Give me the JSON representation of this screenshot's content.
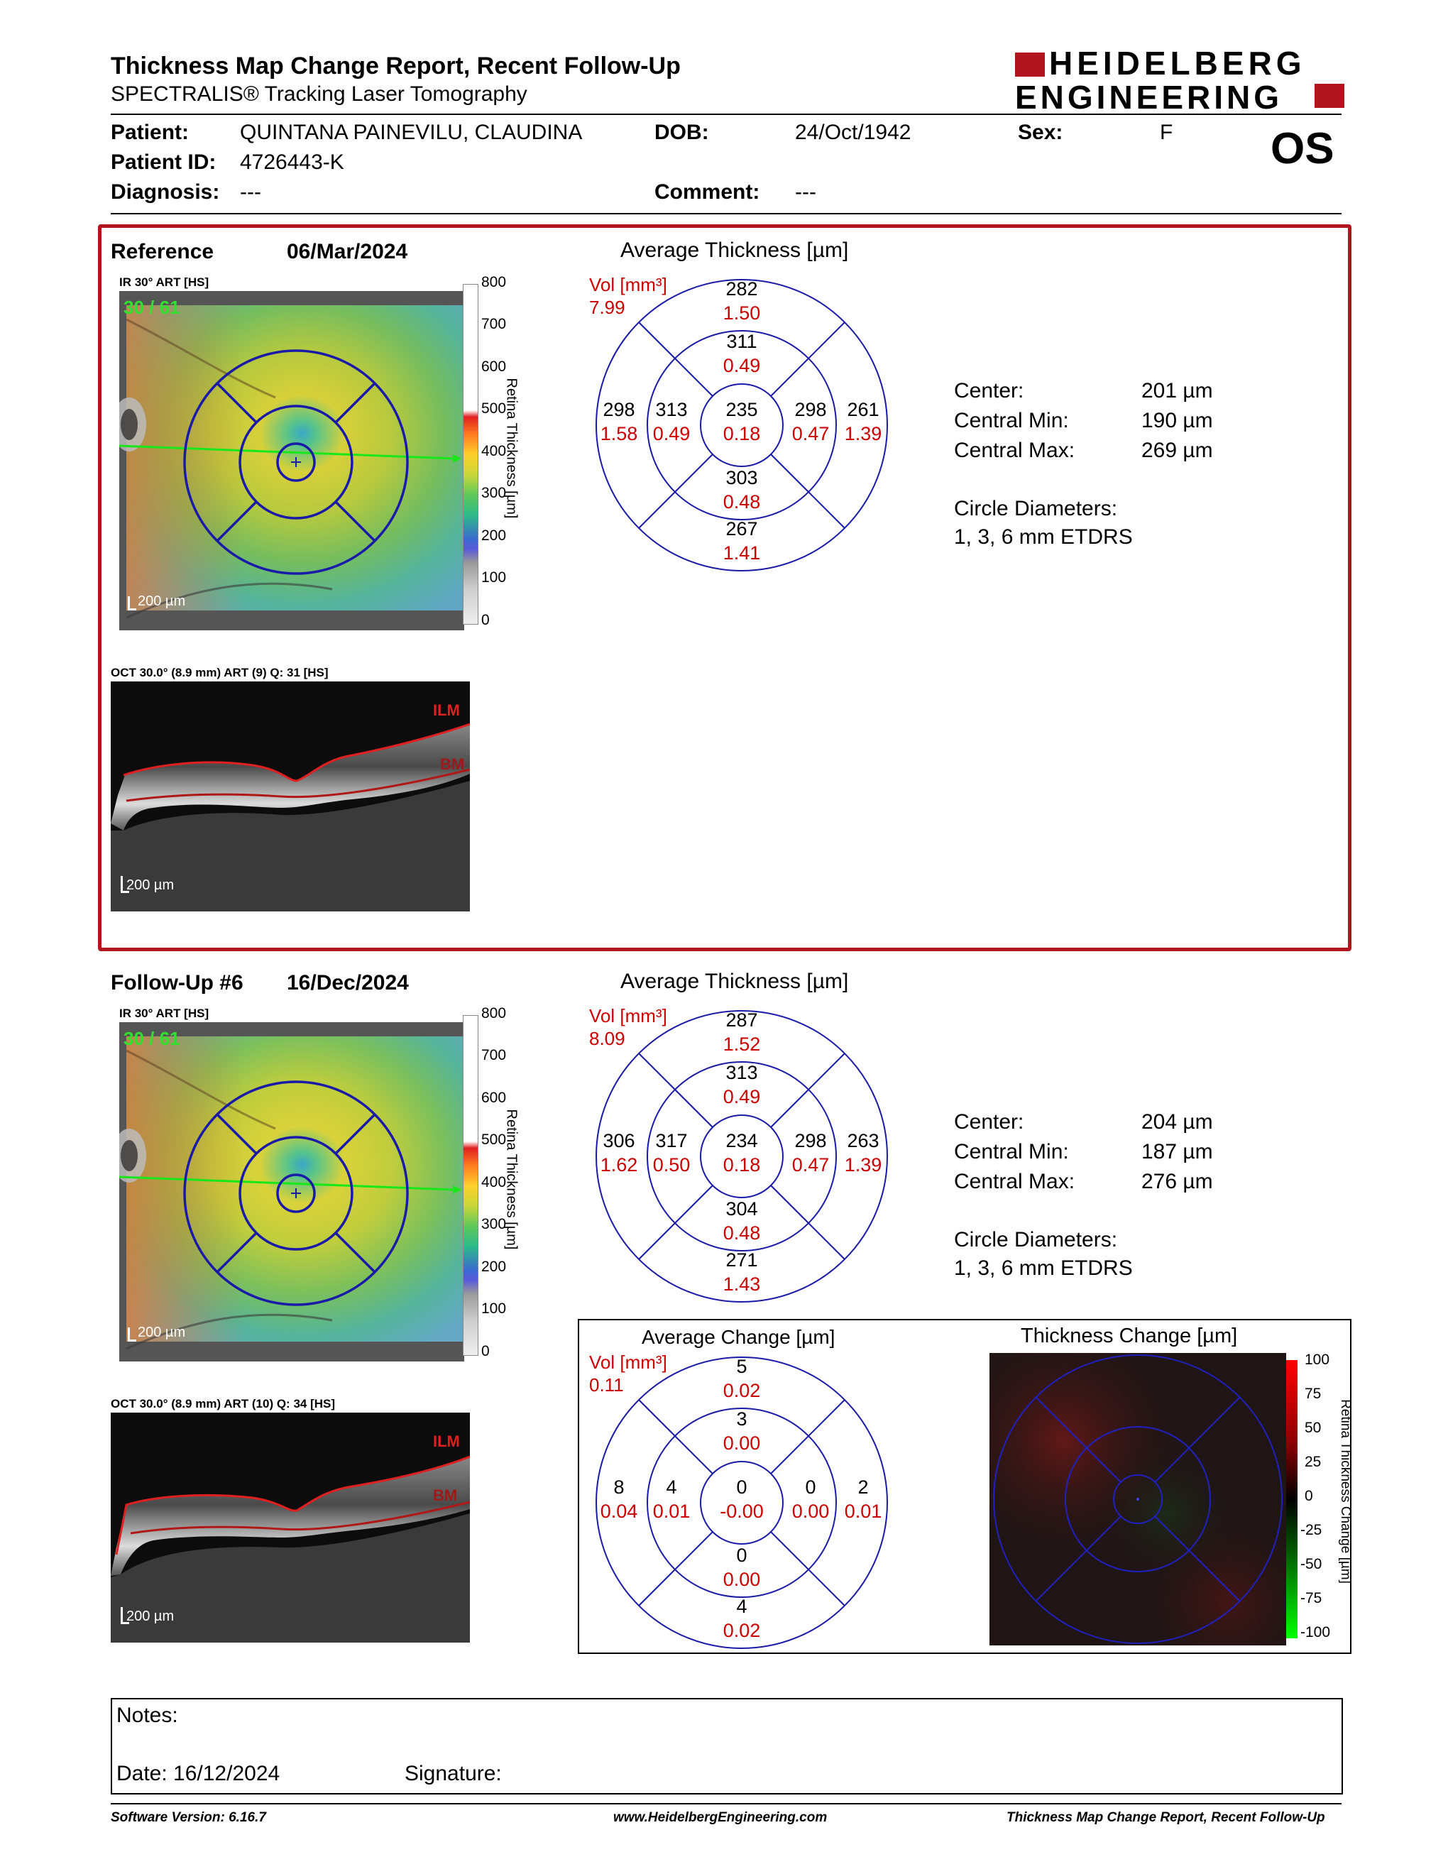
{
  "header": {
    "title": "Thickness Map Change Report, Recent Follow-Up",
    "subtitle": "SPECTRALIS® Tracking Laser Tomography",
    "logo_line1": "HEIDELBERG",
    "logo_line2": "ENGINEERING",
    "eye": "OS"
  },
  "patient": {
    "patient_label": "Patient:",
    "patient_value": "QUINTANA PAINEVILU, CLAUDINA",
    "id_label": "Patient ID:",
    "id_value": "4726443-K",
    "diagnosis_label": "Diagnosis:",
    "diagnosis_value": "---",
    "dob_label": "DOB:",
    "dob_value": "24/Oct/1942",
    "comment_label": "Comment:",
    "comment_value": "---",
    "sex_label": "Sex:",
    "sex_value": "F"
  },
  "reference": {
    "label": "Reference",
    "date": "06/Mar/2024",
    "ir_label": "IR 30° ART [HS]",
    "ir_overlay": "30 / 61",
    "ir_scale": "200 µm",
    "oct_label": "OCT 30.0° (8.9 mm) ART (9) Q: 31 [HS]",
    "oct_scale": "200 µm",
    "ilm": "ILM",
    "bm": "BM",
    "avg_title": "Average Thickness [µm]",
    "vol_label": "Vol [mm³]",
    "vol_value": "7.99",
    "sectors": {
      "outer_top": {
        "t": "282",
        "v": "1.50"
      },
      "inner_top": {
        "t": "311",
        "v": "0.49"
      },
      "outer_left": {
        "t": "298",
        "v": "1.58"
      },
      "inner_left": {
        "t": "313",
        "v": "0.49"
      },
      "center": {
        "t": "235",
        "v": "0.18"
      },
      "inner_right": {
        "t": "298",
        "v": "0.47"
      },
      "outer_right": {
        "t": "261",
        "v": "1.39"
      },
      "inner_bottom": {
        "t": "303",
        "v": "0.48"
      },
      "outer_bottom": {
        "t": "267",
        "v": "1.41"
      }
    },
    "stats": {
      "center_label": "Center:",
      "center_value": "201 µm",
      "min_label": "Central Min:",
      "min_value": "190 µm",
      "max_label": "Central Max:",
      "max_value": "269 µm",
      "circ_label": "Circle Diameters:",
      "circ_value": "1, 3, 6 mm ETDRS"
    }
  },
  "followup": {
    "label": "Follow-Up #6",
    "date": "16/Dec/2024",
    "ir_label": "IR 30° ART [HS]",
    "ir_overlay": "30 / 61",
    "ir_scale": "200 µm",
    "oct_label": "OCT 30.0° (8.9 mm) ART (10) Q: 34 [HS]",
    "oct_scale": "200 µm",
    "ilm": "ILM",
    "bm": "BM",
    "avg_title": "Average Thickness [µm]",
    "vol_label": "Vol [mm³]",
    "vol_value": "8.09",
    "sectors": {
      "outer_top": {
        "t": "287",
        "v": "1.52"
      },
      "inner_top": {
        "t": "313",
        "v": "0.49"
      },
      "outer_left": {
        "t": "306",
        "v": "1.62"
      },
      "inner_left": {
        "t": "317",
        "v": "0.50"
      },
      "center": {
        "t": "234",
        "v": "0.18"
      },
      "inner_right": {
        "t": "298",
        "v": "0.47"
      },
      "outer_right": {
        "t": "263",
        "v": "1.39"
      },
      "inner_bottom": {
        "t": "304",
        "v": "0.48"
      },
      "outer_bottom": {
        "t": "271",
        "v": "1.43"
      }
    },
    "stats": {
      "center_label": "Center:",
      "center_value": "204 µm",
      "min_label": "Central Min:",
      "min_value": "187 µm",
      "max_label": "Central Max:",
      "max_value": "276 µm",
      "circ_label": "Circle Diameters:",
      "circ_value": "1, 3, 6 mm ETDRS"
    }
  },
  "change": {
    "avg_title": "Average Change [µm]",
    "vol_label": "Vol [mm³]",
    "vol_value": "0.11",
    "sectors": {
      "outer_top": {
        "t": "5",
        "v": "0.02"
      },
      "inner_top": {
        "t": "3",
        "v": "0.00"
      },
      "outer_left": {
        "t": "8",
        "v": "0.04"
      },
      "inner_left": {
        "t": "4",
        "v": "0.01"
      },
      "center": {
        "t": "0",
        "v": "-0.00"
      },
      "inner_right": {
        "t": "0",
        "v": "0.00"
      },
      "outer_right": {
        "t": "2",
        "v": "0.01"
      },
      "inner_bottom": {
        "t": "0",
        "v": "0.00"
      },
      "outer_bottom": {
        "t": "4",
        "v": "0.02"
      }
    },
    "map_title": "Thickness Change [µm]",
    "map_axis_title": "Retina Thickness Change [µm]",
    "map_ticks": [
      "100",
      "75",
      "50",
      "25",
      "0",
      "-25",
      "-50",
      "-75",
      "-100"
    ]
  },
  "thickness_scale": {
    "axis_title": "Retina Thickness [µm]",
    "ticks": [
      "800",
      "700",
      "600",
      "500",
      "400",
      "300",
      "200",
      "100",
      "0"
    ]
  },
  "notes": {
    "notes_label": "Notes:",
    "date_label": "Date: 16/12/2024",
    "signature_label": "Signature:"
  },
  "footer": {
    "software": "Software Version: 6.16.7",
    "website": "www.HeidelbergEngineering.com",
    "report": "Thickness Map Change Report, Recent Follow-Up"
  },
  "colors": {
    "accent_red": "#b0151e",
    "value_red": "#cc0000",
    "etdrs_blue": "#1a1aa8"
  }
}
